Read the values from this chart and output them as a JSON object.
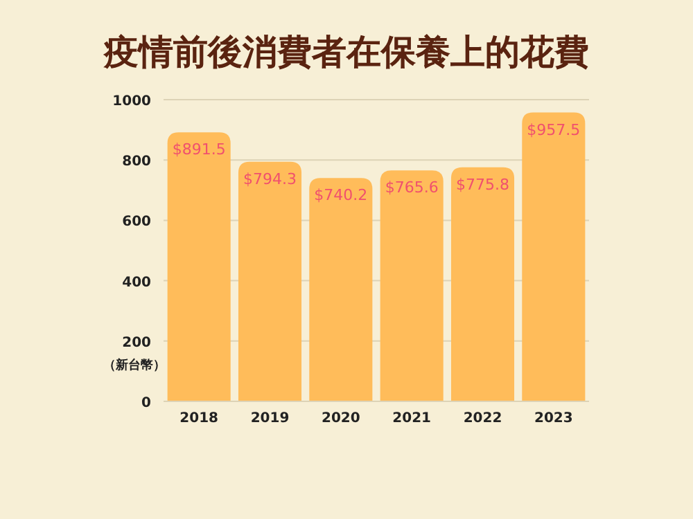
{
  "chart_data": {
    "type": "bar",
    "title": "疫情前後消費者在保養上的花費",
    "ylabel": "（新台幣）",
    "categories": [
      "2018",
      "2019",
      "2020",
      "2021",
      "2022",
      "2023"
    ],
    "values": [
      891.5,
      794.3,
      740.2,
      765.6,
      775.8,
      957.5
    ],
    "value_labels": [
      "$891.5",
      "$794.3",
      "$740.2",
      "$765.6",
      "$775.8",
      "$957.5"
    ],
    "color": "#ffbc5a",
    "ylim": [
      0,
      1000
    ],
    "yticks": [
      0,
      200,
      400,
      600,
      800,
      1000
    ],
    "grid": "y"
  }
}
